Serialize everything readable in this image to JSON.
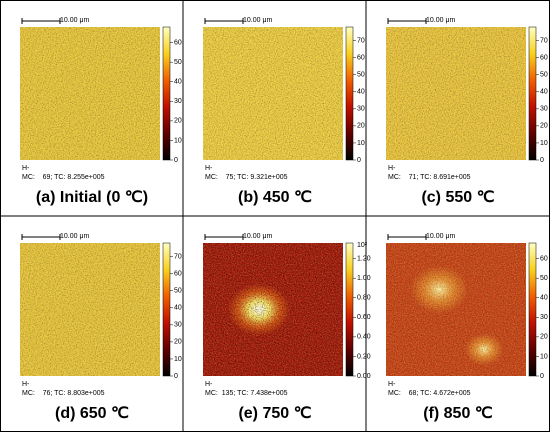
{
  "panels": [
    {
      "scale_bar": "10.00 μm",
      "h_label": "H-",
      "stats": "MC:    69; TC: 8.255e+005",
      "caption": "(a) Initial (0 ℃)",
      "colorbar_ticks": [
        "0",
        "10",
        "20",
        "30",
        "40",
        "50",
        "60"
      ]
    },
    {
      "scale_bar": "10.00 μm",
      "h_label": "H-",
      "stats": "MC:    75; TC: 9.321e+005",
      "caption": "(b) 450 ℃",
      "colorbar_ticks": [
        "0",
        "10",
        "20",
        "30",
        "40",
        "50",
        "60",
        "70"
      ]
    },
    {
      "scale_bar": "10.00 μm",
      "h_label": "H-",
      "stats": "MC:    71; TC: 8.691e+005",
      "caption": "(c) 550 ℃",
      "colorbar_ticks": [
        "0",
        "10",
        "20",
        "30",
        "40",
        "50",
        "60",
        "70"
      ]
    },
    {
      "scale_bar": "10.00 μm",
      "h_label": "H-",
      "stats": "MC:    76; TC: 8.803e+005",
      "caption": "(d) 650 ℃",
      "colorbar_ticks": [
        "0",
        "10",
        "20",
        "30",
        "40",
        "50",
        "60",
        "70"
      ]
    },
    {
      "scale_bar": "10.00 μm",
      "h_label": "H-",
      "stats": "MC:  135; TC: 7.438e+005",
      "caption": "(e) 750 ℃",
      "colorbar_ticks": [
        "0.00",
        "0.20",
        "0.40",
        "0.60",
        "0.80",
        "1.00",
        "1.20"
      ],
      "colorbar_exponent": "10²"
    },
    {
      "scale_bar": "10.00 μm",
      "h_label": "H-",
      "stats": "MC:    68; TC: 4.672e+005",
      "caption": "(f) 850 ℃",
      "colorbar_ticks": [
        "0",
        "10",
        "20",
        "30",
        "40",
        "50",
        "60"
      ]
    }
  ]
}
